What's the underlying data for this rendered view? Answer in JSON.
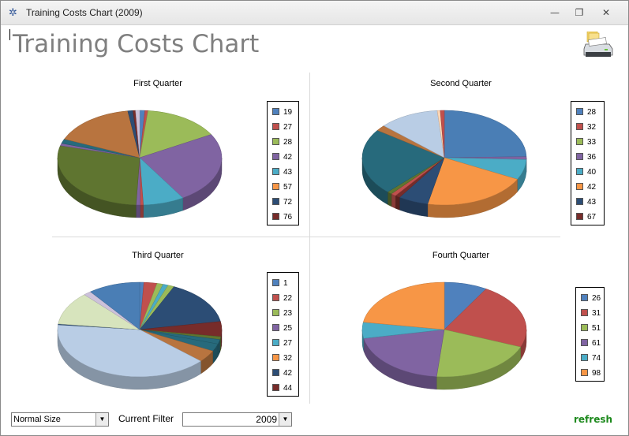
{
  "window": {
    "title": "Training Costs Chart (2009)",
    "minimize_glyph": "—",
    "restore_glyph": "❐",
    "close_glyph": "✕"
  },
  "header": {
    "title": "Training Costs Chart",
    "print_icon": "printer-icon"
  },
  "colors": {
    "blue": "#4f81bd",
    "red": "#c0504d",
    "green": "#9bbb59",
    "purple": "#8064a2",
    "aqua": "#4bacc6",
    "orange": "#f79646",
    "navy": "#2c4d75",
    "maroon": "#772c2a",
    "olive": "#5f7530",
    "teal": "#276a7c",
    "lightgreen": "#d7e4bd",
    "lightblue": "#b9cde5",
    "steel": "#4a7eb5",
    "lavender": "#ccc1da",
    "peach": "#fcd5b4",
    "refresh_green": "#1e8a1e"
  },
  "chart_data": [
    {
      "type": "pie",
      "title": "First Quarter",
      "slices": [
        {
          "label": "19",
          "value": 1.0,
          "color": "#4f81bd"
        },
        {
          "label": "27",
          "value": 0.6,
          "color": "#c0504d"
        },
        {
          "label": "28",
          "value": 15.0,
          "color": "#9bbb59"
        },
        {
          "label": "42",
          "value": 24.0,
          "color": "#8064a2"
        },
        {
          "label": "43",
          "value": 8.0,
          "color": "#4bacc6"
        },
        {
          "label": "",
          "value": 0.6,
          "color": "#c0504d"
        },
        {
          "label": "",
          "value": 0.8,
          "color": "#8064a2"
        },
        {
          "label": "",
          "value": 28.0,
          "color": "#5f7530"
        },
        {
          "label": "",
          "value": 0.8,
          "color": "#8064a2"
        },
        {
          "label": "",
          "value": 1.5,
          "color": "#276a7c"
        },
        {
          "label": "57",
          "value": 16.0,
          "color": "#b8743f"
        },
        {
          "label": "72",
          "value": 1.0,
          "color": "#2c4d75"
        },
        {
          "label": "76",
          "value": 0.5,
          "color": "#772c2a"
        },
        {
          "label": "",
          "value": 0.8,
          "color": "#ccc1da"
        }
      ],
      "legend": [
        "19",
        "27",
        "28",
        "42",
        "43",
        "57",
        "72",
        "76"
      ],
      "legend_colors": [
        "#4f81bd",
        "#c0504d",
        "#9bbb59",
        "#8064a2",
        "#4bacc6",
        "#f79646",
        "#2c4d75",
        "#772c2a"
      ]
    },
    {
      "type": "pie",
      "title": "Second Quarter",
      "slices": [
        {
          "label": "28",
          "value": 25.0,
          "color": "#4a7eb5"
        },
        {
          "label": "36",
          "value": 1.0,
          "color": "#8064a2"
        },
        {
          "label": "40",
          "value": 7.0,
          "color": "#4bacc6"
        },
        {
          "label": "42",
          "value": 21.0,
          "color": "#f79646"
        },
        {
          "label": "43",
          "value": 6.0,
          "color": "#2c4d75"
        },
        {
          "label": "67",
          "value": 1.0,
          "color": "#772c2a"
        },
        {
          "label": "32",
          "value": 1.0,
          "color": "#c0504d"
        },
        {
          "label": "33",
          "value": 1.0,
          "color": "#5f7530"
        },
        {
          "label": "",
          "value": 23.0,
          "color": "#276a7c"
        },
        {
          "label": "",
          "value": 2.0,
          "color": "#b8743f"
        },
        {
          "label": "",
          "value": 12.0,
          "color": "#b9cde5"
        },
        {
          "label": "",
          "value": 0.6,
          "color": "#fcd5b4"
        },
        {
          "label": "",
          "value": 0.8,
          "color": "#c0504d"
        }
      ],
      "legend": [
        "28",
        "32",
        "33",
        "36",
        "40",
        "42",
        "43",
        "67"
      ],
      "legend_colors": [
        "#4f81bd",
        "#c0504d",
        "#9bbb59",
        "#8064a2",
        "#4bacc6",
        "#f79646",
        "#2c4d75",
        "#772c2a"
      ]
    },
    {
      "type": "pie",
      "title": "Third Quarter",
      "slices": [
        {
          "label": "1",
          "value": 0.8,
          "color": "#4f81bd"
        },
        {
          "label": "22",
          "value": 2.5,
          "color": "#c0504d"
        },
        {
          "label": "23",
          "value": 1.2,
          "color": "#9bbb59"
        },
        {
          "label": "",
          "value": 1.0,
          "color": "#4bacc6"
        },
        {
          "label": "",
          "value": 1.2,
          "color": "#9bbb59"
        },
        {
          "label": "42",
          "value": 15.0,
          "color": "#2c4d75"
        },
        {
          "label": "44",
          "value": 5.0,
          "color": "#772c2a"
        },
        {
          "label": "",
          "value": 1.0,
          "color": "#5f7530"
        },
        {
          "label": "",
          "value": 1.5,
          "color": "#276a7c"
        },
        {
          "label": "27",
          "value": 2.5,
          "color": "#276a7c"
        },
        {
          "label": "32",
          "value": 4.0,
          "color": "#b8743f"
        },
        {
          "label": "",
          "value": 39.0,
          "color": "#b9cde5"
        },
        {
          "label": "",
          "value": 0.3,
          "color": "#2c4d75"
        },
        {
          "label": "",
          "value": 11.0,
          "color": "#d7e4bd"
        },
        {
          "label": "25",
          "value": 1.5,
          "color": "#ccc1da"
        },
        {
          "label": "",
          "value": 10.0,
          "color": "#4a7eb5"
        }
      ],
      "legend": [
        "1",
        "22",
        "23",
        "25",
        "27",
        "32",
        "42",
        "44"
      ],
      "legend_colors": [
        "#4f81bd",
        "#c0504d",
        "#9bbb59",
        "#8064a2",
        "#4bacc6",
        "#f79646",
        "#2c4d75",
        "#772c2a"
      ]
    },
    {
      "type": "pie",
      "title": "Fourth Quarter",
      "slices": [
        {
          "label": "26",
          "value": 8.5,
          "color": "#4f81bd"
        },
        {
          "label": "31",
          "value": 22.5,
          "color": "#c0504d"
        },
        {
          "label": "51",
          "value": 20.5,
          "color": "#9bbb59"
        },
        {
          "label": "61",
          "value": 20.5,
          "color": "#8064a2"
        },
        {
          "label": "74",
          "value": 5.5,
          "color": "#4bacc6"
        },
        {
          "label": "98",
          "value": 22.5,
          "color": "#f79646"
        }
      ],
      "legend": [
        "26",
        "31",
        "51",
        "61",
        "74",
        "98"
      ],
      "legend_colors": [
        "#4f81bd",
        "#c0504d",
        "#9bbb59",
        "#8064a2",
        "#4bacc6",
        "#f79646"
      ]
    }
  ],
  "footer": {
    "size_select_value": "Normal Size",
    "filter_label": "Current Filter",
    "filter_value": "2009",
    "refresh_label": "refresh",
    "dropdown_glyph": "▼"
  }
}
